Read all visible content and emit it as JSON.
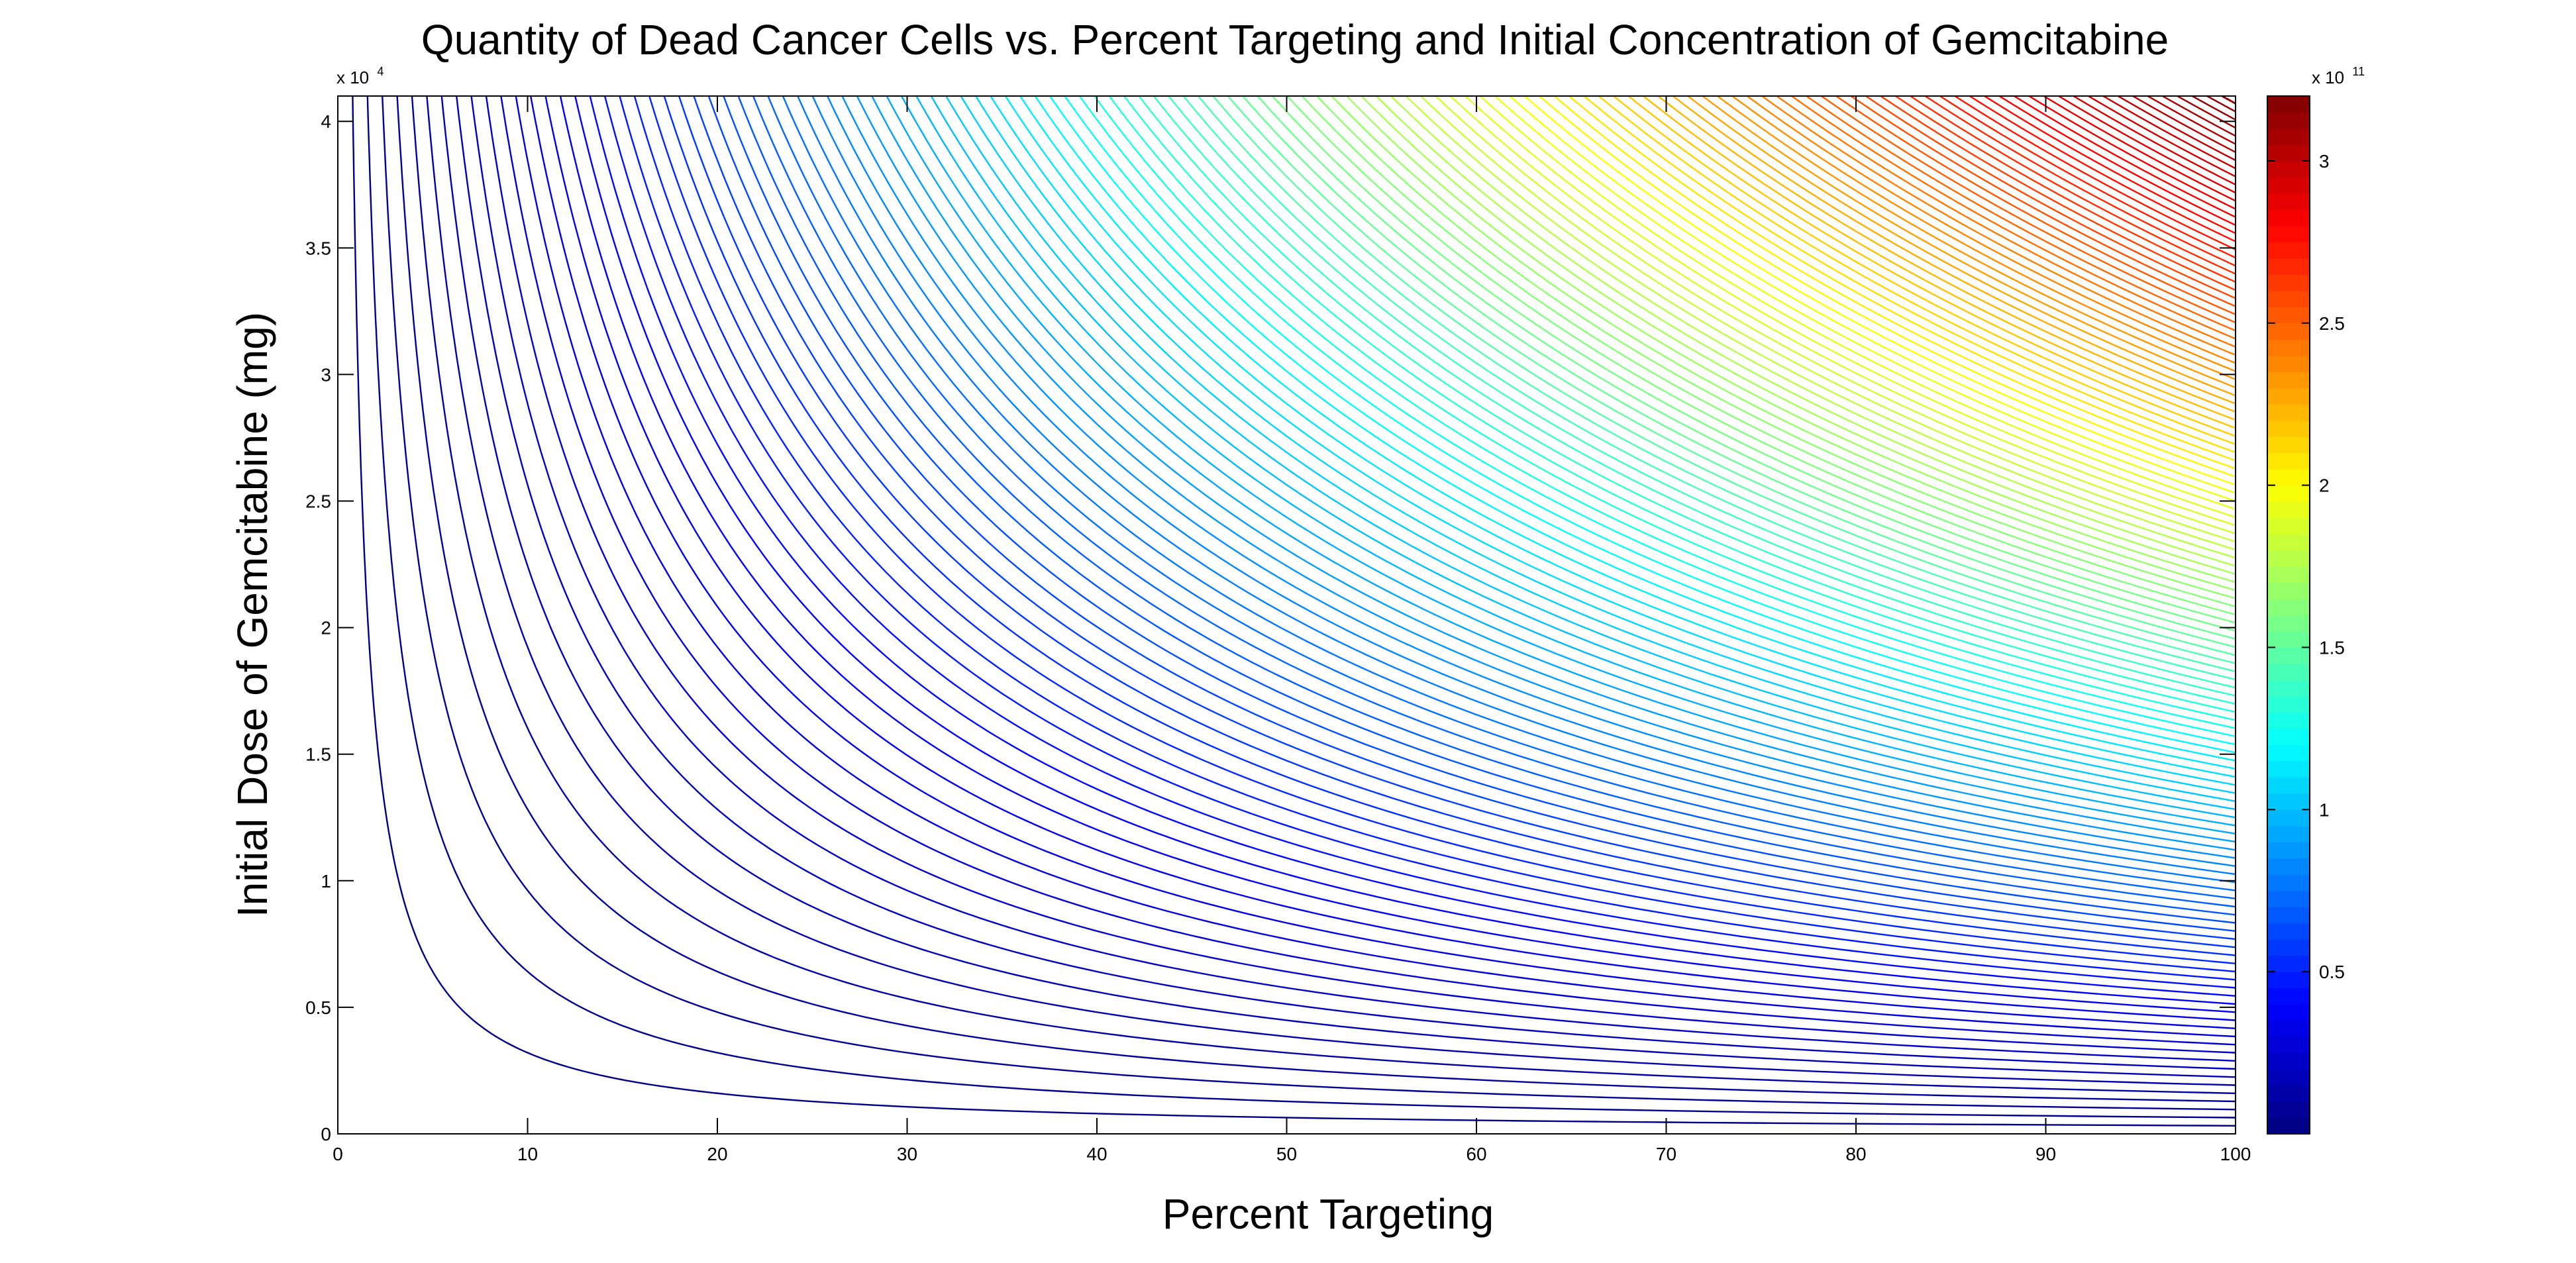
{
  "chart_data": {
    "type": "contour",
    "title": "Quantity of Dead Cancer Cells vs. Percent Targeting and Initial Concentration of Gemcitabine",
    "xlabel": "Percent Targeting",
    "ylabel": "Initial Dose of Gemcitabine (mg)",
    "xlim": [
      0,
      100
    ],
    "ylim": [
      0,
      41000
    ],
    "x_ticks": [
      {
        "value": 0,
        "label": "0"
      },
      {
        "value": 10,
        "label": "10"
      },
      {
        "value": 20,
        "label": "20"
      },
      {
        "value": 30,
        "label": "30"
      },
      {
        "value": 40,
        "label": "40"
      },
      {
        "value": 50,
        "label": "50"
      },
      {
        "value": 60,
        "label": "60"
      },
      {
        "value": 70,
        "label": "70"
      },
      {
        "value": 80,
        "label": "80"
      },
      {
        "value": 90,
        "label": "90"
      },
      {
        "value": 100,
        "label": "100"
      }
    ],
    "y_ticks": [
      {
        "value": 0,
        "label": "0"
      },
      {
        "value": 5000,
        "label": "0.5"
      },
      {
        "value": 10000,
        "label": "1"
      },
      {
        "value": 15000,
        "label": "1.5"
      },
      {
        "value": 20000,
        "label": "2"
      },
      {
        "value": 25000,
        "label": "2.5"
      },
      {
        "value": 30000,
        "label": "3"
      },
      {
        "value": 35000,
        "label": "3.5"
      },
      {
        "value": 40000,
        "label": "4"
      }
    ],
    "y_exponent_label": {
      "base": "x 10",
      "exp": "4"
    },
    "surface": "dead cells = k · x · y, with k ≈ 7.8e4",
    "coefficient": 78000,
    "contour_step": 2500000000,
    "contour_levels_count": 127,
    "colorbar": {
      "colormap": "jet",
      "range": [
        0,
        320000000000
      ],
      "ticks": [
        {
          "value": 50000000000,
          "label": "0.5"
        },
        {
          "value": 100000000000,
          "label": "1"
        },
        {
          "value": 150000000000,
          "label": "1.5"
        },
        {
          "value": 200000000000,
          "label": "2"
        },
        {
          "value": 250000000000,
          "label": "2.5"
        },
        {
          "value": 300000000000,
          "label": "3"
        }
      ],
      "exponent_label": {
        "base": "x 10",
        "exp": "11"
      }
    },
    "grid": false,
    "legend": "none"
  }
}
